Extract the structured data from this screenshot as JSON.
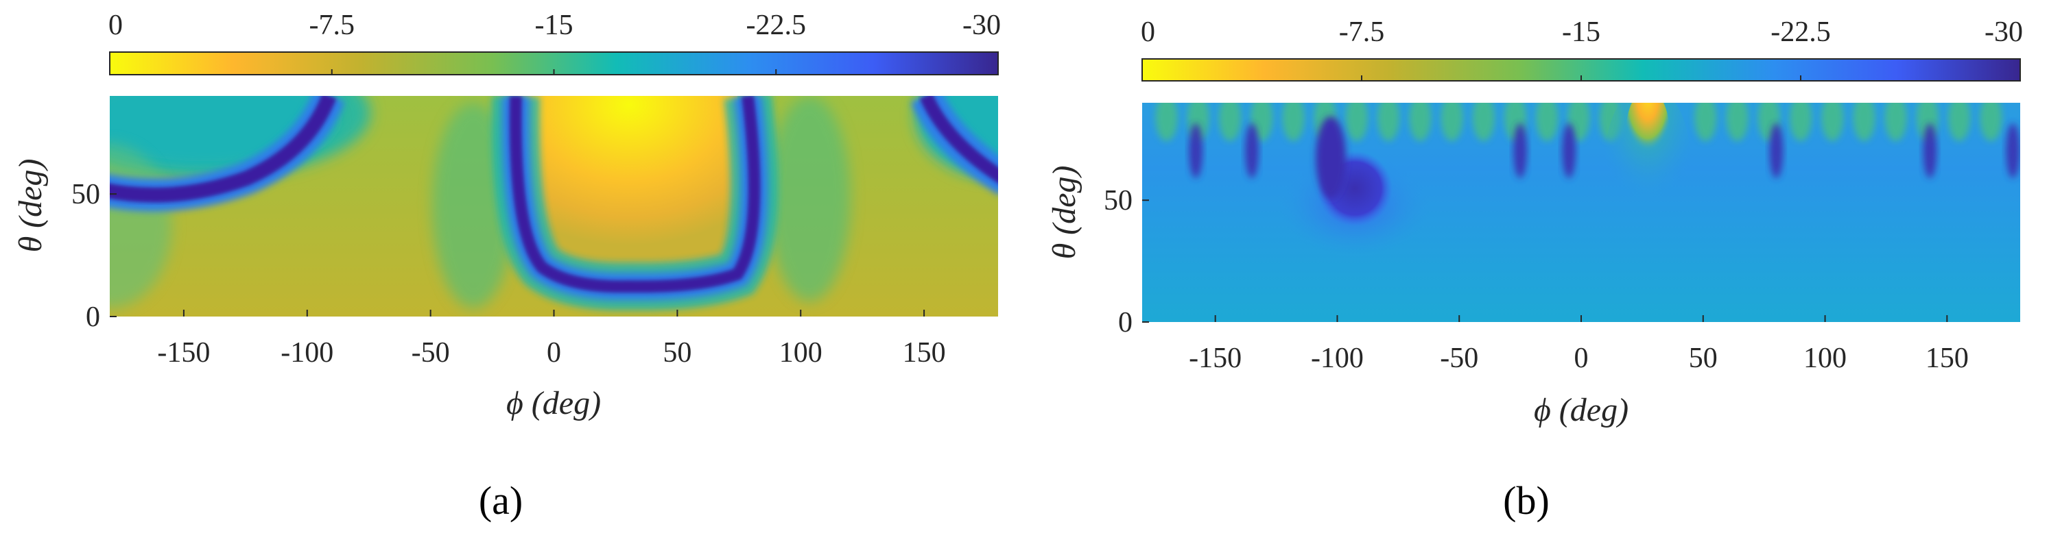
{
  "colormap": [
    "#f9fb0e",
    "#feb72d",
    "#c3b22f",
    "#79bf51",
    "#12bcb6",
    "#2d8ef0",
    "#3c5df5",
    "#38268f"
  ],
  "chart_data": [
    {
      "type": "heatmap",
      "panel_label": "(a)",
      "title": "",
      "xlabel": "ϕ (deg)",
      "ylabel": "θ (deg)",
      "x_range": [
        -180,
        180
      ],
      "y_range": [
        0,
        90
      ],
      "x_ticks": [
        "-150",
        "-100",
        "-50",
        "0",
        "50",
        "100",
        "150"
      ],
      "x_tick_values": [
        -150,
        -100,
        -50,
        0,
        50,
        100,
        150
      ],
      "y_ticks": [
        "0",
        "50"
      ],
      "y_tick_values": [
        0,
        50
      ],
      "colorbar": {
        "placement": "top",
        "range": [
          0,
          -30
        ],
        "tick_labels": [
          "0",
          "-7.5",
          "-15",
          "-22.5",
          "-30"
        ],
        "tick_values": [
          0,
          -7.5,
          -15,
          -22.5,
          -30
        ]
      },
      "features": [
        {
          "description": "main lobe",
          "phi": 30,
          "theta": 85,
          "value": 0
        },
        {
          "description": "null ring",
          "phi_center": 30,
          "theta_min": 12,
          "value": -30
        },
        {
          "description": "null arc",
          "phi_center": -145,
          "theta_min": 50,
          "value": -30
        },
        {
          "description": "background",
          "value": -7.5
        }
      ]
    },
    {
      "type": "heatmap",
      "panel_label": "(b)",
      "title": "",
      "xlabel": "ϕ (deg)",
      "ylabel": "θ (deg)",
      "x_range": [
        -180,
        180
      ],
      "y_range": [
        0,
        90
      ],
      "x_ticks": [
        "-150",
        "-100",
        "-50",
        "0",
        "50",
        "100",
        "150"
      ],
      "x_tick_values": [
        -150,
        -100,
        -50,
        0,
        50,
        100,
        150
      ],
      "y_ticks": [
        "0",
        "50"
      ],
      "y_tick_values": [
        0,
        50
      ],
      "colorbar": {
        "placement": "top",
        "range": [
          0,
          -30
        ],
        "tick_labels": [
          "0",
          "-7.5",
          "-15",
          "-22.5",
          "-30"
        ],
        "tick_values": [
          0,
          -7.5,
          -15,
          -22.5,
          -30
        ]
      },
      "features": [
        {
          "description": "main lobe",
          "phi": 30,
          "theta": 80,
          "value": 0
        },
        {
          "description": "deep null",
          "phi": -95,
          "theta": 50,
          "value": -30
        },
        {
          "description": "background",
          "value": -17
        }
      ]
    }
  ]
}
